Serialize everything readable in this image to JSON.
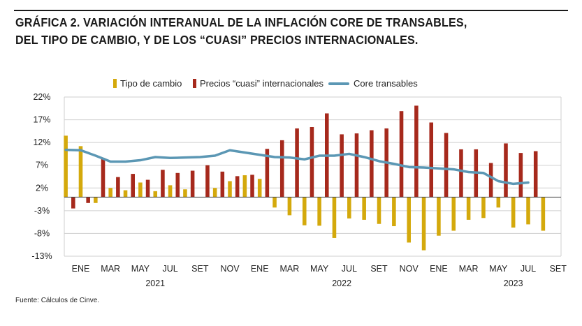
{
  "title": {
    "line1": "GRÁFICA 2. VARIACIÓN INTERANUAL DE LA INFLACIÓN CORE DE TRANSABLES,",
    "line2": "DEL TIPO DE CAMBIO, Y DE LOS “CUASI” PRECIOS INTERNACIONALES."
  },
  "source": "Fuente: Cálculos de Cinve.",
  "colors": {
    "tipo": "#d4a90c",
    "precios": "#a6291c",
    "core": "#5b97b4",
    "grid": "#cfcfcf",
    "text": "#222222"
  },
  "chart_data": {
    "type": "bar",
    "title": "GRÁFICA 2. VARIACIÓN INTERANUAL DE LA INFLACIÓN CORE DE TRANSABLES, DEL TIPO DE CAMBIO, Y DE LOS “CUASI” PRECIOS INTERNACIONALES.",
    "legend_position": "top",
    "ylim": [
      -13,
      22
    ],
    "y_ticks": [
      22,
      17,
      12,
      7,
      2,
      -3,
      -8,
      -13
    ],
    "y_tick_labels": [
      "22%",
      "17%",
      "12%",
      "7%",
      "2%",
      "-3%",
      "-8%",
      "-13%"
    ],
    "x_tick_labels": [
      "ENE",
      "MAR",
      "MAY",
      "JUL",
      "SET",
      "NOV",
      "ENE",
      "MAR",
      "MAY",
      "JUL",
      "SET",
      "NOV",
      "ENE",
      "MAR",
      "MAY",
      "JUL",
      "SET"
    ],
    "x_tick_months": [
      1,
      3,
      5,
      7,
      9,
      11,
      13,
      15,
      17,
      19,
      21,
      23,
      25,
      27,
      29,
      31,
      33
    ],
    "year_labels": [
      {
        "label": "2021",
        "month": 6
      },
      {
        "label": "2022",
        "month": 18.5
      },
      {
        "label": "2023",
        "month": 30
      }
    ],
    "months": [
      0,
      1,
      2,
      3,
      4,
      5,
      6,
      7,
      8,
      9,
      10,
      11,
      12,
      13,
      14,
      15,
      16,
      17,
      18,
      19,
      20,
      21,
      22,
      23,
      24,
      25,
      26,
      27,
      28,
      29,
      30,
      31,
      32,
      33
    ],
    "series": [
      {
        "name": "Tipo de cambio",
        "kind": "bar",
        "values": [
          13.5,
          11.2,
          -1.3,
          2.0,
          1.5,
          3.2,
          1.3,
          2.6,
          1.7,
          0,
          2.0,
          3.5,
          4.8,
          4.0,
          -2.3,
          -4.0,
          -6.2,
          -6.3,
          -9.0,
          -4.7,
          -5.0,
          -5.9,
          -6.4,
          -10.0,
          -11.7,
          -8.5,
          -7.4,
          -5.0,
          -4.6,
          -2.3,
          -6.7,
          -6.0,
          -7.4
        ]
      },
      {
        "name": "Precios “cuasi” internacionales",
        "kind": "bar",
        "values": [
          -2.5,
          -1.3,
          8.6,
          4.4,
          5.1,
          3.8,
          6.0,
          5.3,
          5.8,
          7.0,
          5.6,
          4.6,
          4.9,
          10.6,
          12.5,
          15.1,
          15.4,
          18.4,
          13.8,
          14.0,
          14.7,
          15.1,
          18.9,
          20.1,
          16.4,
          14.1,
          10.5,
          10.5,
          7.5,
          11.8,
          9.7,
          10.1
        ]
      },
      {
        "name": "Core transables",
        "kind": "line",
        "values": [
          10.4,
          10.3,
          9.1,
          7.8,
          7.8,
          8.1,
          8.8,
          8.6,
          8.7,
          8.8,
          9.1,
          10.3,
          9.8,
          9.3,
          8.8,
          8.7,
          8.3,
          9.1,
          9.1,
          9.5,
          8.8,
          7.9,
          7.3,
          6.6,
          6.5,
          6.3,
          6.1,
          5.5,
          5.3,
          3.5,
          2.9,
          3.2
        ]
      }
    ],
    "bar_months": {
      "tipo": 0,
      "precios": 0.5,
      "core": 0
    }
  }
}
